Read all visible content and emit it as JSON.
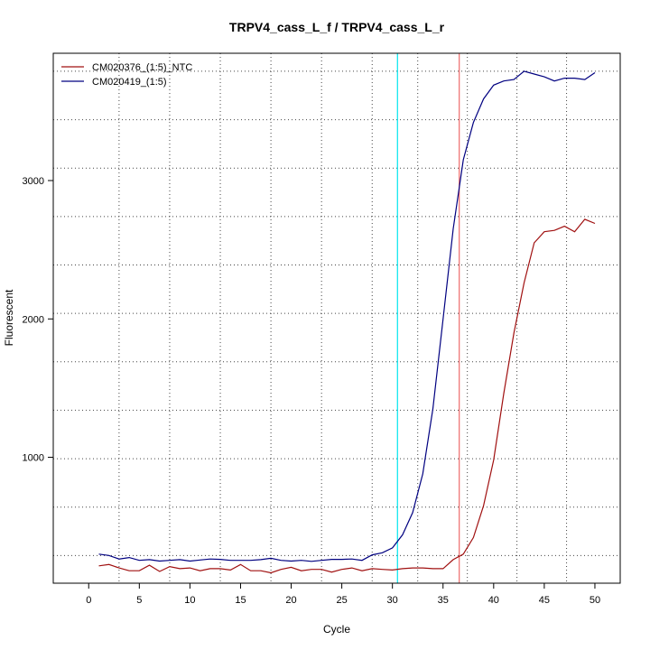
{
  "chart_data": {
    "type": "line",
    "title": "TRPV4_cass_L_f / TRPV4_cass_L_r",
    "xlabel": "Cycle",
    "ylabel": "Fluorescent",
    "xlim": [
      -3.5,
      52.5
    ],
    "ylim": [
      90,
      3920
    ],
    "x_ticks": [
      0,
      5,
      10,
      15,
      20,
      25,
      30,
      35,
      40,
      45,
      50
    ],
    "y_ticks": [
      1000,
      2000,
      3000
    ],
    "grid": true,
    "grid_style": "dotted",
    "grid_x": [
      3,
      8,
      13,
      18,
      23,
      28,
      32.5,
      37.4,
      42.3,
      47.2
    ],
    "grid_y": [
      290,
      640,
      990,
      1340,
      1690,
      2040,
      2390,
      2740,
      3090,
      3440,
      3790
    ],
    "legend_position": "top-left",
    "threshold_lines": [
      {
        "x": 30.5,
        "color": "#00e5ee"
      },
      {
        "x": 36.6,
        "color": "#ee6a6a"
      }
    ],
    "series": [
      {
        "name": "CM020376_(1:5)_NTC",
        "color": "#a01010",
        "x": [
          1,
          2,
          3,
          4,
          5,
          6,
          7,
          8,
          9,
          10,
          11,
          12,
          13,
          14,
          15,
          16,
          17,
          18,
          19,
          20,
          21,
          22,
          23,
          24,
          25,
          26,
          27,
          28,
          29,
          30,
          31,
          32,
          33,
          34,
          35,
          36,
          37,
          38,
          39,
          40,
          41,
          42,
          43,
          44,
          45,
          46,
          47,
          48,
          49,
          50
        ],
        "y": [
          215,
          225,
          200,
          180,
          180,
          220,
          175,
          210,
          195,
          200,
          180,
          195,
          195,
          185,
          225,
          180,
          180,
          165,
          190,
          205,
          180,
          190,
          190,
          170,
          190,
          200,
          180,
          195,
          190,
          185,
          195,
          200,
          200,
          195,
          195,
          260,
          300,
          420,
          650,
          980,
          1460,
          1900,
          2260,
          2550,
          2630,
          2640,
          2670,
          2630,
          2720,
          2690
        ]
      },
      {
        "name": "CM020419_(1:5)",
        "color": "#000080",
        "x": [
          1,
          2,
          3,
          4,
          5,
          6,
          7,
          8,
          9,
          10,
          11,
          12,
          13,
          14,
          15,
          16,
          17,
          18,
          19,
          20,
          21,
          22,
          23,
          24,
          25,
          26,
          27,
          28,
          29,
          30,
          31,
          32,
          33,
          34,
          35,
          36,
          37,
          38,
          39,
          40,
          41,
          42,
          43,
          44,
          45,
          46,
          47,
          48,
          49,
          50
        ],
        "y": [
          300,
          290,
          265,
          275,
          255,
          260,
          250,
          255,
          260,
          250,
          258,
          265,
          262,
          255,
          255,
          255,
          260,
          270,
          255,
          250,
          255,
          248,
          255,
          262,
          262,
          265,
          255,
          295,
          310,
          345,
          440,
          600,
          880,
          1350,
          2000,
          2650,
          3150,
          3420,
          3590,
          3690,
          3720,
          3730,
          3790,
          3770,
          3750,
          3720,
          3740,
          3740,
          3730,
          3780
        ]
      }
    ]
  }
}
